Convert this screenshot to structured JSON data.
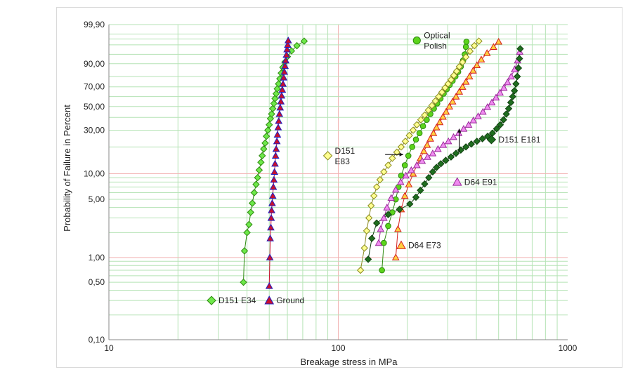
{
  "chart_data": {
    "type": "scatter",
    "xlabel": "Breakage stress in MPa",
    "ylabel": "Probability of Failure in Percent",
    "x_scale": "log",
    "y_scale": "weibull",
    "xlim": [
      10,
      1000
    ],
    "ylim": [
      0.1,
      99.9
    ],
    "x_ticks": [
      10,
      100,
      1000
    ],
    "x_tick_labels": [
      "10",
      "100",
      "1000"
    ],
    "y_ticks": [
      0.1,
      0.5,
      1,
      5,
      10,
      30,
      50,
      70,
      90,
      99.9
    ],
    "y_tick_labels": [
      "0,10",
      "0,50",
      "1,00",
      "5,00",
      "10,00",
      "30,00",
      "50,00",
      "70,00",
      "90,00",
      "99,90"
    ],
    "grid": true,
    "colors": {
      "grid_minor": "#b5e3b5",
      "grid_major": "#f2b3b3",
      "green": "#5cd41c",
      "dark_green": "#1f6e1f",
      "yellow": "#f0f080",
      "orange": "#f58c1c",
      "pink": "#e07ae0",
      "red": "#d42020",
      "blue": "#2020c0"
    },
    "series": [
      {
        "name": "D151 E34",
        "marker": "diamond",
        "fill": "#6ee84a",
        "stroke": "#2e8a10",
        "line": "#2e8a10",
        "points": [
          [
            38.6,
            0.5
          ],
          [
            39.0,
            1.2
          ],
          [
            40.0,
            2.0
          ],
          [
            40.8,
            2.5
          ],
          [
            41.5,
            3.5
          ],
          [
            42.2,
            4.5
          ],
          [
            43,
            6
          ],
          [
            43.8,
            7.5
          ],
          [
            44.5,
            9
          ],
          [
            45.2,
            11
          ],
          [
            46,
            13.5
          ],
          [
            46.6,
            16
          ],
          [
            47.3,
            19
          ],
          [
            48,
            22
          ],
          [
            48.6,
            26
          ],
          [
            49.3,
            30
          ],
          [
            50,
            34
          ],
          [
            50.6,
            39
          ],
          [
            51.2,
            43
          ],
          [
            51.8,
            48
          ],
          [
            52.4,
            53
          ],
          [
            53,
            58
          ],
          [
            53.6,
            63
          ],
          [
            54.2,
            68
          ],
          [
            54.9,
            73
          ],
          [
            55.6,
            78
          ],
          [
            56.4,
            83
          ],
          [
            57.3,
            87.5
          ],
          [
            58.5,
            91
          ],
          [
            60,
            94
          ],
          [
            62.5,
            96.3
          ],
          [
            66,
            97.8
          ],
          [
            71,
            98.7
          ]
        ]
      },
      {
        "name": "Ground",
        "marker": "triangle",
        "fill": "#c8102e",
        "stroke": "#2020c0",
        "line": "#c8102e",
        "points": [
          [
            50,
            0.45
          ],
          [
            50.3,
            1.0
          ],
          [
            50.5,
            1.7
          ],
          [
            50.8,
            2.3
          ],
          [
            51,
            3.0
          ],
          [
            51.2,
            3.7
          ],
          [
            51.5,
            4.5
          ],
          [
            51.8,
            5.5
          ],
          [
            52.1,
            7
          ],
          [
            52.4,
            8.5
          ],
          [
            52.7,
            10.5
          ],
          [
            53,
            13
          ],
          [
            53.3,
            16
          ],
          [
            53.6,
            19
          ],
          [
            54,
            23
          ],
          [
            54.3,
            27
          ],
          [
            54.7,
            32
          ],
          [
            55,
            37
          ],
          [
            55.4,
            43
          ],
          [
            55.8,
            49
          ],
          [
            56.2,
            55
          ],
          [
            56.6,
            61
          ],
          [
            57,
            67
          ],
          [
            57.4,
            73
          ],
          [
            57.8,
            79
          ],
          [
            58.2,
            84
          ],
          [
            58.6,
            88.5
          ],
          [
            59,
            92
          ],
          [
            59.4,
            94.8
          ],
          [
            59.8,
            96.8
          ],
          [
            60.2,
            98
          ],
          [
            60.5,
            98.8
          ]
        ]
      },
      {
        "name": "Optical Polish",
        "marker": "circle",
        "fill": "#5cd41c",
        "stroke": "#2e8a10",
        "line": "#2e8a10",
        "points": [
          [
            155,
            0.7
          ],
          [
            158,
            1.5
          ],
          [
            165,
            2.4
          ],
          [
            172,
            3.5
          ],
          [
            178,
            5
          ],
          [
            183,
            7
          ],
          [
            188,
            9.5
          ],
          [
            195,
            12.5
          ],
          [
            202,
            16
          ],
          [
            210,
            20
          ],
          [
            218,
            24
          ],
          [
            226,
            28
          ],
          [
            234,
            33
          ],
          [
            243,
            38
          ],
          [
            252,
            43
          ],
          [
            261,
            48
          ],
          [
            270,
            53
          ],
          [
            279,
            58
          ],
          [
            288,
            63
          ],
          [
            297,
            67.5
          ],
          [
            306,
            72
          ],
          [
            315,
            76
          ],
          [
            324,
            80
          ],
          [
            333,
            84
          ],
          [
            342,
            88
          ],
          [
            350,
            92
          ],
          [
            356,
            95
          ],
          [
            360,
            97.5
          ],
          [
            362,
            98.6
          ]
        ]
      },
      {
        "name": "D151 E83",
        "marker": "diamond",
        "fill": "#ffff90",
        "stroke": "#8a8a20",
        "line": "#8a8a20",
        "points": [
          [
            125,
            0.7
          ],
          [
            130,
            1.3
          ],
          [
            133,
            2.1
          ],
          [
            136,
            3.0
          ],
          [
            139,
            4.2
          ],
          [
            143,
            5.5
          ],
          [
            147,
            7
          ],
          [
            152,
            8.5
          ],
          [
            158,
            10.5
          ],
          [
            165,
            12.5
          ],
          [
            172,
            15
          ],
          [
            180,
            17.5
          ],
          [
            188,
            20
          ],
          [
            196,
            23
          ],
          [
            204,
            26.5
          ],
          [
            212,
            30
          ],
          [
            220,
            34
          ],
          [
            229,
            38
          ],
          [
            238,
            42
          ],
          [
            247,
            46.5
          ],
          [
            256,
            51
          ],
          [
            265,
            55.5
          ],
          [
            274,
            60
          ],
          [
            283,
            64.5
          ],
          [
            292,
            69
          ],
          [
            301,
            73
          ],
          [
            310,
            77
          ],
          [
            319,
            81
          ],
          [
            328,
            84.5
          ],
          [
            337,
            88
          ],
          [
            348,
            91
          ],
          [
            360,
            93.8
          ],
          [
            375,
            96.2
          ],
          [
            392,
            97.8
          ],
          [
            410,
            98.7
          ]
        ]
      },
      {
        "name": "D64 E73",
        "marker": "triangle",
        "fill": "#ffd040",
        "stroke": "#d42020",
        "line": "#d42020",
        "points": [
          [
            178,
            1.0
          ],
          [
            182,
            2.2
          ],
          [
            188,
            3.8
          ],
          [
            195,
            5.5
          ],
          [
            203,
            7.5
          ],
          [
            212,
            10
          ],
          [
            220,
            12.5
          ],
          [
            228,
            15
          ],
          [
            236,
            18
          ],
          [
            244,
            21
          ],
          [
            252,
            24.5
          ],
          [
            260,
            28
          ],
          [
            268,
            32
          ],
          [
            277,
            36
          ],
          [
            286,
            40.5
          ],
          [
            295,
            45
          ],
          [
            305,
            50
          ],
          [
            315,
            55
          ],
          [
            326,
            60
          ],
          [
            337,
            65
          ],
          [
            348,
            70
          ],
          [
            360,
            75
          ],
          [
            373,
            80
          ],
          [
            387,
            85
          ],
          [
            402,
            89
          ],
          [
            420,
            92.5
          ],
          [
            445,
            95.5
          ],
          [
            475,
            97.5
          ],
          [
            500,
            98.6
          ]
        ]
      },
      {
        "name": "D64 E91",
        "marker": "triangle",
        "fill": "#f08cf0",
        "stroke": "#9a2a9a",
        "line": "#9a2a9a",
        "points": [
          [
            150,
            1.5
          ],
          [
            153,
            2.2
          ],
          [
            158,
            3.0
          ],
          [
            163,
            4.0
          ],
          [
            170,
            5.2
          ],
          [
            178,
            6.5
          ],
          [
            187,
            8
          ],
          [
            197,
            9.5
          ],
          [
            208,
            11
          ],
          [
            220,
            12.5
          ],
          [
            232,
            14
          ],
          [
            245,
            15.5
          ],
          [
            258,
            17
          ],
          [
            272,
            19
          ],
          [
            287,
            21
          ],
          [
            302,
            23
          ],
          [
            318,
            25.5
          ],
          [
            335,
            28
          ],
          [
            352,
            31
          ],
          [
            370,
            34
          ],
          [
            388,
            37.5
          ],
          [
            407,
            41
          ],
          [
            427,
            45
          ],
          [
            447,
            49.5
          ],
          [
            467,
            54
          ],
          [
            487,
            59
          ],
          [
            507,
            64
          ],
          [
            527,
            69
          ],
          [
            547,
            74.5
          ],
          [
            567,
            80
          ],
          [
            587,
            86
          ],
          [
            605,
            92
          ],
          [
            618,
            96
          ]
        ]
      },
      {
        "name": "D151 E181",
        "marker": "diamond",
        "fill": "#1f6e1f",
        "stroke": "#104010",
        "line": "#104010",
        "points": [
          [
            135,
            0.95
          ],
          [
            140,
            1.7
          ],
          [
            147,
            2.6
          ],
          [
            165,
            3.3
          ],
          [
            185,
            3.8
          ],
          [
            205,
            4.4
          ],
          [
            218,
            5.3
          ],
          [
            228,
            6.4
          ],
          [
            238,
            7.6
          ],
          [
            248,
            9
          ],
          [
            258,
            10.5
          ],
          [
            268,
            11.8
          ],
          [
            280,
            13
          ],
          [
            294,
            14.2
          ],
          [
            310,
            15.5
          ],
          [
            326,
            17
          ],
          [
            342,
            18.5
          ],
          [
            360,
            20
          ],
          [
            380,
            21.5
          ],
          [
            402,
            23
          ],
          [
            425,
            24.5
          ],
          [
            448,
            26
          ],
          [
            470,
            28
          ],
          [
            490,
            31
          ],
          [
            508,
            34
          ],
          [
            525,
            38
          ],
          [
            540,
            43
          ],
          [
            553,
            48
          ],
          [
            565,
            54
          ],
          [
            576,
            60
          ],
          [
            586,
            66
          ],
          [
            595,
            73
          ],
          [
            603,
            80
          ],
          [
            610,
            87
          ],
          [
            616,
            93
          ],
          [
            621,
            97
          ]
        ]
      }
    ],
    "annotations": [
      {
        "name": "Optical Polish",
        "text": [
          "Optical",
          "Polish"
        ],
        "marker_x": 220,
        "marker_y": 98.8,
        "series": "Optical Polish"
      },
      {
        "name": "D151 E83",
        "text": [
          "D151",
          "E83"
        ],
        "marker_x": 90,
        "marker_y": 16,
        "series": "D151 E83",
        "arrow": {
          "from": [
            160,
            16.5
          ],
          "to": [
            192,
            16.5
          ]
        }
      },
      {
        "name": "D151 E181",
        "text": [
          "D151 E181"
        ],
        "marker_x": 465,
        "marker_y": 24,
        "series": "D151 E181",
        "arrow": {
          "from": [
            337,
            17.5
          ],
          "to": [
            337,
            31
          ]
        }
      },
      {
        "name": "D64 E91",
        "text": [
          "D64 E91"
        ],
        "marker_x": 330,
        "marker_y": 8.0,
        "series": "D64 E91"
      },
      {
        "name": "D64 E73",
        "text": [
          "D64 E73"
        ],
        "marker_x": 188,
        "marker_y": 1.4,
        "series": "D64 E73"
      },
      {
        "name": "D151 E34",
        "text": [
          "D151 E34"
        ],
        "marker_x": 28,
        "marker_y": 0.3,
        "series": "D151 E34"
      },
      {
        "name": "Ground",
        "text": [
          "Ground"
        ],
        "marker_x": 50,
        "marker_y": 0.3,
        "series": "Ground"
      }
    ]
  }
}
